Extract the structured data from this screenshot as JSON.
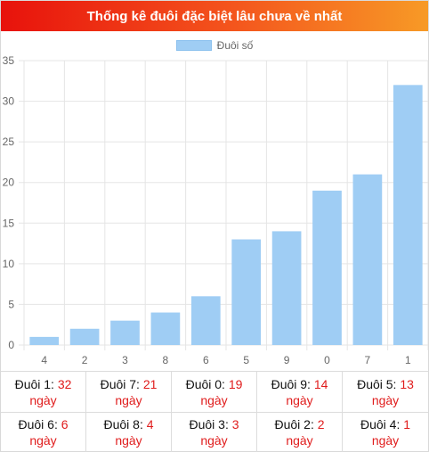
{
  "header": {
    "title": "Thống kê đuôi đặc biệt lâu chưa về nhất"
  },
  "legend": {
    "label": "Đuôi số"
  },
  "colors": {
    "bar": "#9fcdf4",
    "header_start": "#e8120c",
    "header_end": "#f79a26",
    "value": "#e01c1c"
  },
  "chart_data": {
    "type": "bar",
    "categories": [
      "4",
      "2",
      "3",
      "8",
      "6",
      "5",
      "9",
      "0",
      "7",
      "1"
    ],
    "series": [
      {
        "name": "Đuôi số",
        "values": [
          1,
          2,
          3,
          4,
          6,
          13,
          14,
          19,
          21,
          32
        ]
      }
    ],
    "ylim": [
      0,
      35
    ],
    "yticks": [
      0,
      5,
      10,
      15,
      20,
      25,
      30,
      35
    ],
    "grid": true,
    "legend_position": "top"
  },
  "stats": [
    {
      "label": "Đuôi 1:",
      "value": "32",
      "unit": "ngày"
    },
    {
      "label": "Đuôi 7:",
      "value": "21",
      "unit": "ngày"
    },
    {
      "label": "Đuôi 0:",
      "value": "19",
      "unit": "ngày"
    },
    {
      "label": "Đuôi 9:",
      "value": "14",
      "unit": "ngày"
    },
    {
      "label": "Đuôi 5:",
      "value": "13",
      "unit": "ngày"
    },
    {
      "label": "Đuôi 6:",
      "value": "6",
      "unit": "ngày"
    },
    {
      "label": "Đuôi 8:",
      "value": "4",
      "unit": "ngày"
    },
    {
      "label": "Đuôi 3:",
      "value": "3",
      "unit": "ngày"
    },
    {
      "label": "Đuôi 2:",
      "value": "2",
      "unit": "ngày"
    },
    {
      "label": "Đuôi 4:",
      "value": "1",
      "unit": "ngày"
    }
  ]
}
